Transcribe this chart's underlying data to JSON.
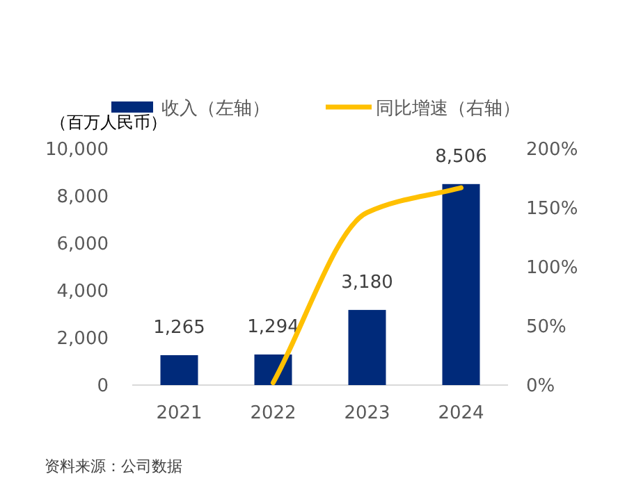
{
  "chart_data": {
    "type": "bar",
    "categories": [
      "2021",
      "2022",
      "2023",
      "2024"
    ],
    "ylabel": "（百万人民币）",
    "series": [
      {
        "name": "收入（左轴）",
        "color": "#002a7a",
        "values": [
          1265,
          1294,
          3180,
          8506
        ],
        "value_labels": [
          "1,265",
          "1,294",
          "3,180",
          "8,506"
        ]
      },
      {
        "name": "同比增速（右轴）",
        "type": "line",
        "axis": "y2",
        "color": "#ffc000",
        "values": [
          null,
          2,
          146,
          167
        ]
      }
    ],
    "ylim": [
      0,
      10000
    ],
    "yticks": [
      {
        "value": 0,
        "label": "0"
      },
      {
        "value": 2000,
        "label": "2,000"
      },
      {
        "value": 4000,
        "label": "4,000"
      },
      {
        "value": 6000,
        "label": "6,000"
      },
      {
        "value": 8000,
        "label": "8,000"
      },
      {
        "value": 10000,
        "label": "10,000"
      }
    ],
    "y2lim": [
      0,
      200
    ],
    "y2ticks": [
      {
        "value": 0,
        "label": "0%"
      },
      {
        "value": 50,
        "label": "50%"
      },
      {
        "value": 100,
        "label": "100%"
      },
      {
        "value": 150,
        "label": "150%"
      },
      {
        "value": 200,
        "label": "200%"
      }
    ],
    "legend": "top",
    "grid": false,
    "annotations": [
      "资料来源：公司数据"
    ]
  }
}
